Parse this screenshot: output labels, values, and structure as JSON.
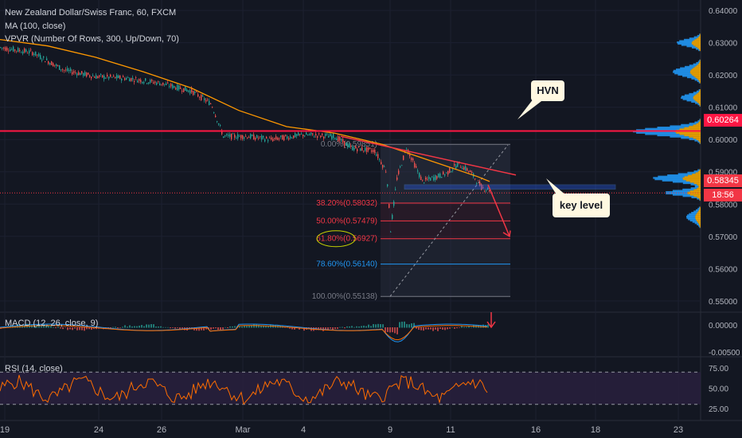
{
  "header": {
    "title": "New Zealand Dollar/Swiss Franc, 60, FXCM",
    "ma": "MA (100, close)",
    "vpvr": "VPVR (Number Of Rows, 300, Up/Down, 70)"
  },
  "price_axis": {
    "ticks": [
      "0.64000",
      "0.63000",
      "0.62000",
      "0.61000",
      "0.60000",
      "0.59000",
      "0.58000",
      "0.57000",
      "0.56000",
      "0.55000"
    ],
    "hvn_tag": "0.60264",
    "last_tag": "0.58345",
    "countdown_tag": "18:56"
  },
  "time_axis": {
    "ticks": [
      "19",
      "24",
      "26",
      "Mar",
      "4",
      "9",
      "11",
      "16",
      "18",
      "23"
    ]
  },
  "fib": {
    "levels": [
      {
        "label": "0.00%(0.59851)",
        "value": 0.59851,
        "color": "#787b86"
      },
      {
        "label": "38.20%(0.58032)",
        "value": 0.58032,
        "color": "#f23645"
      },
      {
        "label": "50.00%(0.57479)",
        "value": 0.57479,
        "color": "#f23645"
      },
      {
        "label": "61.80%(0.56927)",
        "value": 0.56927,
        "color": "#f23645"
      },
      {
        "label": "78.60%(0.56140)",
        "value": 0.5614,
        "color": "#2196f3"
      },
      {
        "label": "100.00%(0.55138)",
        "value": 0.55138,
        "color": "#787b86"
      }
    ]
  },
  "annotations": {
    "hvn": "HVN",
    "key_level": "key level",
    "hvn_price": 0.60264
  },
  "macd": {
    "label": "MACD (12, 26, close, 9)",
    "ticks": [
      "0.00000",
      "-0.00500"
    ]
  },
  "rsi": {
    "label": "RSI (14, close)",
    "ticks": [
      "75.00",
      "50.00",
      "25.00"
    ]
  },
  "colors": {
    "background": "#131722",
    "up": "#26a69a",
    "down": "#ef5350",
    "ma": "#ff9800",
    "hvn_line": "#ff1744",
    "rsi": "#ff6d00",
    "rsi_band": "#2a2040",
    "accent_blue": "#2196f3"
  },
  "chart_data": {
    "type": "candlestick",
    "symbol": "NZDCHF",
    "ylim": [
      0.547,
      0.642
    ],
    "path": [
      [
        0,
        0.6285
      ],
      [
        40,
        0.627
      ],
      [
        80,
        0.6215
      ],
      [
        120,
        0.6195
      ],
      [
        160,
        0.619
      ],
      [
        200,
        0.6175
      ],
      [
        240,
        0.615
      ],
      [
        265,
        0.611
      ],
      [
        280,
        0.601
      ],
      [
        310,
        0.601
      ],
      [
        340,
        0.6
      ],
      [
        380,
        0.6015
      ],
      [
        420,
        0.601
      ],
      [
        440,
        0.5975
      ],
      [
        470,
        0.5965
      ],
      [
        485,
        0.59
      ],
      [
        490,
        0.572
      ],
      [
        498,
        0.588
      ],
      [
        510,
        0.5975
      ],
      [
        530,
        0.587
      ],
      [
        560,
        0.5895
      ],
      [
        575,
        0.5925
      ],
      [
        590,
        0.59
      ],
      [
        605,
        0.585
      ],
      [
        615,
        0.5845
      ]
    ],
    "ma_path": [
      [
        0,
        0.631
      ],
      [
        60,
        0.629
      ],
      [
        120,
        0.6255
      ],
      [
        180,
        0.621
      ],
      [
        240,
        0.616
      ],
      [
        300,
        0.609
      ],
      [
        360,
        0.604
      ],
      [
        420,
        0.602
      ],
      [
        480,
        0.5985
      ],
      [
        540,
        0.5935
      ],
      [
        600,
        0.5885
      ],
      [
        615,
        0.587
      ]
    ]
  }
}
